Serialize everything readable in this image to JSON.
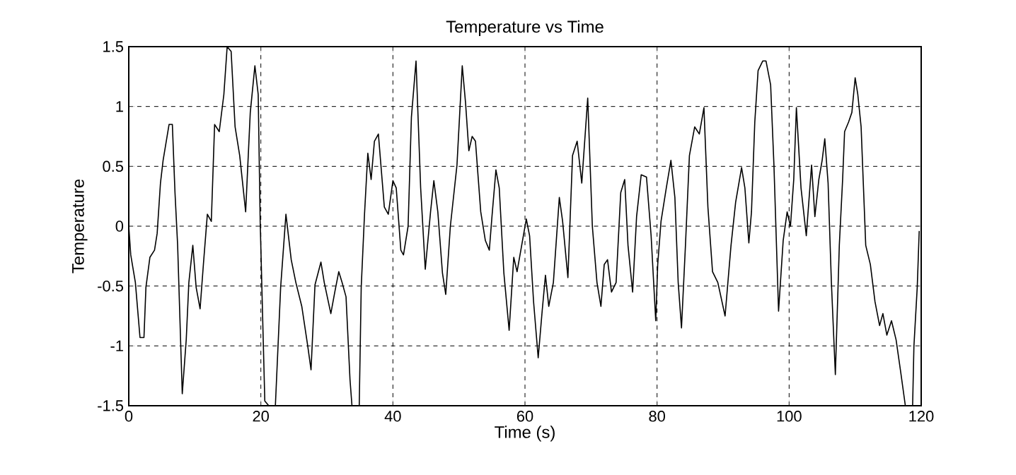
{
  "chart_data": {
    "type": "line",
    "title": "Temperature vs Time",
    "xlabel": "Time (s)",
    "ylabel": "Temperature",
    "xlim": [
      0,
      120
    ],
    "ylim": [
      -1.5,
      1.5
    ],
    "xticks": [
      0,
      20,
      40,
      60,
      80,
      100,
      120
    ],
    "yticks": [
      -1.5,
      -1,
      -0.5,
      0,
      0.5,
      1,
      1.5
    ],
    "grid": true,
    "series": [
      {
        "color": "#000000",
        "x": [
          0,
          0.3,
          1.0,
          1.7,
          2.3,
          2.6,
          3.2,
          3.9,
          4.3,
          4.8,
          5.2,
          6.1,
          6.6,
          7.0,
          7.4,
          8.1,
          8.7,
          9.1,
          9.7,
          10.2,
          10.8,
          11.3,
          11.9,
          12.5,
          13.0,
          13.7,
          14.4,
          14.9,
          15.5,
          16.1,
          16.8,
          17.7,
          18.4,
          19.1,
          19.6,
          19.9,
          20.6,
          21.2,
          22.2,
          23.0,
          23.8,
          24.6,
          25.3,
          26.2,
          27.1,
          27.6,
          28.2,
          29.1,
          29.6,
          30.6,
          31.2,
          31.8,
          32.3,
          32.9,
          33.5,
          33.8,
          34.9,
          35.2,
          35.7,
          36.2,
          36.7,
          37.2,
          37.8,
          38.7,
          39.3,
          40.0,
          40.5,
          41.2,
          41.6,
          42.3,
          42.8,
          43.5,
          44.2,
          44.9,
          45.7,
          46.2,
          46.8,
          47.5,
          48.0,
          48.7,
          49.7,
          50.5,
          51.0,
          51.5,
          52.0,
          52.5,
          53.3,
          54.0,
          54.6,
          55.0,
          55.6,
          56.1,
          56.8,
          57.6,
          58.3,
          58.8,
          59.5,
          60.2,
          60.7,
          61.3,
          62.0,
          62.6,
          63.1,
          63.6,
          64.3,
          65.2,
          65.7,
          66.5,
          67.2,
          67.9,
          68.6,
          69.5,
          70.2,
          70.9,
          71.5,
          72.0,
          72.5,
          73.1,
          73.8,
          74.5,
          75.1,
          75.6,
          76.3,
          76.9,
          77.6,
          78.4,
          79.1,
          79.8,
          80.1,
          80.6,
          81.4,
          82.1,
          82.7,
          83.2,
          83.7,
          84.3,
          84.9,
          85.7,
          86.4,
          87.1,
          87.7,
          88.4,
          89.2,
          90.3,
          91.2,
          91.9,
          92.8,
          93.3,
          93.9,
          94.3,
          94.8,
          95.3,
          96.0,
          96.5,
          97.2,
          97.7,
          98.4,
          99.1,
          99.7,
          100.2,
          100.7,
          101.1,
          101.8,
          102.6,
          103.4,
          103.9,
          104.5,
          105.0,
          105.4,
          105.9,
          106.4,
          107.0,
          107.6,
          108.1,
          108.4,
          109.0,
          109.5,
          110.0,
          110.4,
          110.9,
          111.6,
          112.3,
          113.0,
          113.7,
          114.2,
          114.8,
          115.5,
          116.2,
          116.9,
          117.6,
          118.7,
          118.9,
          119.4,
          119.7
        ],
        "values": [
          0,
          -0.24,
          -0.47,
          -0.93,
          -0.93,
          -0.51,
          -0.26,
          -0.2,
          -0.06,
          0.36,
          0.55,
          0.85,
          0.85,
          0.28,
          -0.16,
          -1.4,
          -0.95,
          -0.47,
          -0.16,
          -0.51,
          -0.69,
          -0.32,
          0.1,
          0.04,
          0.85,
          0.79,
          1.1,
          1.5,
          1.46,
          0.83,
          0.59,
          0.12,
          0.95,
          1.34,
          1.1,
          0.04,
          -1.46,
          -1.5,
          -1.5,
          -0.51,
          0.1,
          -0.28,
          -0.47,
          -0.67,
          -1.0,
          -1.2,
          -0.49,
          -0.3,
          -0.47,
          -0.73,
          -0.55,
          -0.38,
          -0.47,
          -0.59,
          -1.28,
          -1.5,
          -1.5,
          -0.51,
          0.1,
          0.61,
          0.39,
          0.71,
          0.77,
          0.16,
          0.1,
          0.38,
          0.32,
          -0.2,
          -0.24,
          0.0,
          0.91,
          1.38,
          0.32,
          -0.36,
          0.12,
          0.38,
          0.12,
          -0.39,
          -0.57,
          0.0,
          0.51,
          1.34,
          1.03,
          0.63,
          0.75,
          0.71,
          0.12,
          -0.12,
          -0.2,
          0.08,
          0.47,
          0.32,
          -0.39,
          -0.87,
          -0.26,
          -0.38,
          -0.16,
          0.06,
          -0.08,
          -0.63,
          -1.1,
          -0.71,
          -0.41,
          -0.67,
          -0.47,
          0.24,
          0.04,
          -0.43,
          0.59,
          0.71,
          0.36,
          1.07,
          0.0,
          -0.47,
          -0.67,
          -0.32,
          -0.28,
          -0.55,
          -0.47,
          0.28,
          0.39,
          -0.16,
          -0.55,
          0.08,
          0.43,
          0.41,
          -0.08,
          -0.79,
          -0.32,
          0.04,
          0.32,
          0.55,
          0.24,
          -0.47,
          -0.85,
          -0.16,
          0.59,
          0.83,
          0.77,
          0.99,
          0.16,
          -0.38,
          -0.47,
          -0.75,
          -0.16,
          0.2,
          0.49,
          0.32,
          -0.14,
          0.12,
          0.87,
          1.3,
          1.38,
          1.38,
          1.18,
          0.51,
          -0.71,
          -0.12,
          0.12,
          0.0,
          0.39,
          0.99,
          0.32,
          -0.08,
          0.51,
          0.08,
          0.39,
          0.55,
          0.73,
          0.36,
          -0.47,
          -1.24,
          -0.16,
          0.39,
          0.79,
          0.87,
          0.95,
          1.24,
          1.1,
          0.83,
          -0.16,
          -0.32,
          -0.63,
          -0.83,
          -0.73,
          -0.91,
          -0.79,
          -0.95,
          -1.22,
          -1.5,
          -1.5,
          -1.0,
          -0.51,
          -0.04
        ]
      }
    ]
  }
}
